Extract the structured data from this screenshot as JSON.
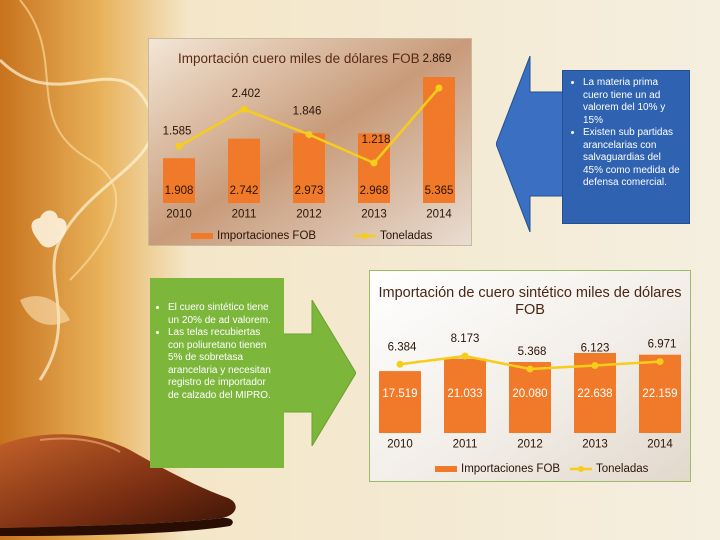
{
  "notes": {
    "top": [
      "La materia prima cuero tiene un ad valorem del 10% y 15%",
      "Existen sub partidas arancelarias con salvaguardias del 45% como medida de defensa comercial."
    ],
    "left": [
      "El cuero sintético tiene un 20% de ad valorem.",
      "Las telas recubiertas con poliuretano tienen 5% de sobretasa arancelaria y necesitan registro de importador de calzado del MIPRO."
    ]
  },
  "colors": {
    "bar": "#f07a2a",
    "line": "#f5cd1a",
    "note_top_bg": "#2f62b1",
    "note_left_bg": "#7cb73c"
  },
  "chart_data": [
    {
      "type": "bar",
      "title": "Importación cuero miles de dólares FOB",
      "categories": [
        "2010",
        "2011",
        "2012",
        "2013",
        "2014"
      ],
      "series": [
        {
          "name": "Importaciones FOB",
          "type": "bar",
          "values": [
            1908,
            2742,
            2973,
            2968,
            5365
          ],
          "labels": [
            "1.908",
            "2.742",
            "2.973",
            "2.968",
            "5.365"
          ]
        },
        {
          "name": "Toneladas",
          "type": "line",
          "values": [
            1585,
            2402,
            1846,
            1218,
            2869
          ],
          "labels": [
            "1.585",
            "2.402",
            "1.846",
            "1.218",
            "2.869"
          ]
        }
      ],
      "legend": "bottom"
    },
    {
      "type": "bar",
      "title": "Importación de cuero sintético miles de dólares FOB",
      "categories": [
        "2010",
        "2011",
        "2012",
        "2013",
        "2014"
      ],
      "series": [
        {
          "name": "Importaciones FOB",
          "type": "bar",
          "values": [
            17519,
            21033,
            20080,
            22638,
            22159
          ],
          "labels": [
            "17.519",
            "21.033",
            "20.080",
            "22.638",
            "22.159"
          ]
        },
        {
          "name": "Toneladas",
          "type": "line",
          "values": [
            6384,
            8173,
            5368,
            6123,
            6971
          ],
          "labels": [
            "6.384",
            "8.173",
            "5.368",
            "6.123",
            "6.971"
          ]
        }
      ],
      "legend": "bottom"
    }
  ]
}
